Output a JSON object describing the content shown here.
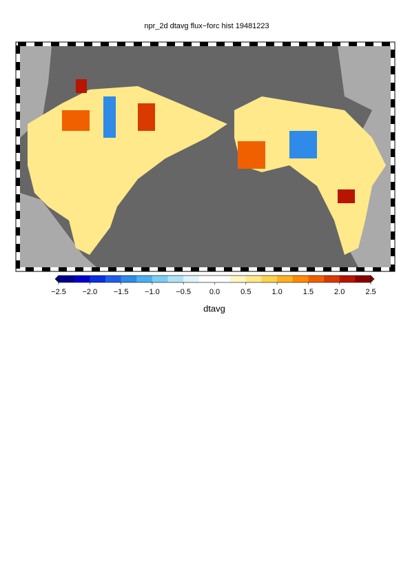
{
  "chart_data": {
    "type": "map",
    "title": "npr_2d dtavg flux−forc hist 19481223",
    "colorbar": {
      "label": "dtavg",
      "range": [
        -2.5,
        2.5
      ],
      "ticks": [
        {
          "value": -2.5,
          "label": "−2.5"
        },
        {
          "value": -2,
          "label": "−2.0"
        },
        {
          "value": -1.5,
          "label": "−1.5"
        },
        {
          "value": -1,
          "label": "−1.0"
        },
        {
          "value": -0.5,
          "label": "−0.5"
        },
        {
          "value": 0,
          "label": "0.0"
        },
        {
          "value": 0.5,
          "label": "0.5"
        },
        {
          "value": 1,
          "label": "1.0"
        },
        {
          "value": 1.5,
          "label": "1.5"
        },
        {
          "value": 2,
          "label": "2.0"
        },
        {
          "value": 2.5,
          "label": "2.5"
        }
      ],
      "colors": [
        "#00008b",
        "#0000cd",
        "#0a2fe0",
        "#1f5fe8",
        "#2f8ae8",
        "#4ab0ef",
        "#7ccdf4",
        "#b1e3f7",
        "#dff3fb",
        "#ffffff",
        "#ffffff",
        "#fff6c2",
        "#ffe98a",
        "#ffd24d",
        "#ffb020",
        "#ff8c00",
        "#f06000",
        "#d83a00",
        "#b81400",
        "#8b0000"
      ]
    }
  }
}
